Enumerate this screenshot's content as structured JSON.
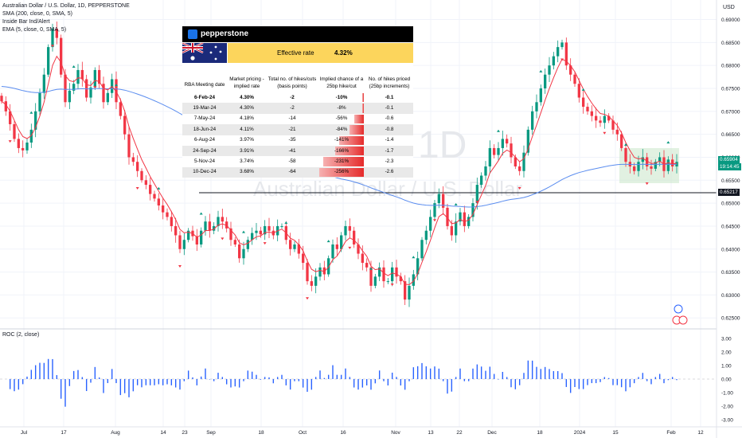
{
  "header": {
    "title": "Australian Dollar / U.S. Dollar, 1D, PEPPERSTONE",
    "sma200": "SMA (200, close, 0, SMA, 5)",
    "inside_bar": "Inside Bar Ind/Alert",
    "ema5": "EMA (5, close, 0, SMA, 5)"
  },
  "currency": "USD",
  "watermark": {
    "big": "1D",
    "name": "Australian Dollar / U.S. Dollar"
  },
  "price_axis": {
    "ticks": [
      "0.69000",
      "0.68500",
      "0.68000",
      "0.67500",
      "0.67000",
      "0.66500",
      "0.66000",
      "0.65500",
      "0.65000",
      "0.64500",
      "0.64000",
      "0.63500",
      "0.63000",
      "0.62500"
    ]
  },
  "price_tags": {
    "current": "0.65904",
    "countdown": "19:14:45",
    "level": "0.65217"
  },
  "time_axis": {
    "labels": [
      "Jul",
      "17",
      "Aug",
      "14",
      "23",
      "Sep",
      "18",
      "Oct",
      "16",
      "Nov",
      "13",
      "22",
      "Dec",
      "18",
      "2024",
      "15",
      "Feb",
      "12"
    ]
  },
  "roc": {
    "label": "ROC (2, close)",
    "ticks": [
      "3.00",
      "2.00",
      "1.00",
      "0.00",
      "-1.00",
      "-2.00",
      "-3.00"
    ]
  },
  "rba_table": {
    "brand": "pepperstone",
    "effective_label": "Effective rate",
    "effective_value": "4.32%",
    "headers": [
      "RBA Meeting date",
      "Market pricing - implied rate",
      "Total no. of hikes/cuts (basis points)",
      "Implied chance of a 25bp hike/cut",
      "No. of hikes priced (25bp increments)"
    ],
    "rows": [
      {
        "date": "6-Feb-24",
        "rate": "4.30%",
        "bps": "-2",
        "chance": "-10%",
        "chance_num": -10,
        "hikes": "-0.1"
      },
      {
        "date": "19-Mar-24",
        "rate": "4.30%",
        "bps": "-2",
        "chance": "-8%",
        "chance_num": -8,
        "hikes": "-0.1"
      },
      {
        "date": "7-May-24",
        "rate": "4.18%",
        "bps": "-14",
        "chance": "-56%",
        "chance_num": -56,
        "hikes": "-0.6"
      },
      {
        "date": "18-Jun-24",
        "rate": "4.11%",
        "bps": "-21",
        "chance": "-84%",
        "chance_num": -84,
        "hikes": "-0.8"
      },
      {
        "date": "6-Aug-24",
        "rate": "3.97%",
        "bps": "-35",
        "chance": "-141%",
        "chance_num": -141,
        "hikes": "-1.4"
      },
      {
        "date": "24-Sep-24",
        "rate": "3.91%",
        "bps": "-41",
        "chance": "-166%",
        "chance_num": -166,
        "hikes": "-1.7"
      },
      {
        "date": "5-Nov-24",
        "rate": "3.74%",
        "bps": "-58",
        "chance": "-231%",
        "chance_num": -231,
        "hikes": "-2.3"
      },
      {
        "date": "10-Dec-24",
        "rate": "3.68%",
        "bps": "-64",
        "chance": "-256%",
        "chance_num": -256,
        "hikes": "-2.6"
      }
    ]
  },
  "colors": {
    "up": "#089981",
    "down": "#f23645",
    "sma": "#5b8def",
    "ema": "#f23645",
    "roc": "#2962ff",
    "box": "#c8e6c9"
  },
  "chart_data": {
    "type": "candlestick",
    "symbol": "AUDUSD",
    "timeframe": "1D",
    "ylim": [
      0.624,
      0.692
    ],
    "close": [
      0.6722,
      0.67,
      0.6672,
      0.664,
      0.662,
      0.6615,
      0.6632,
      0.666,
      0.67,
      0.674,
      0.678,
      0.684,
      0.688,
      0.686,
      0.678,
      0.672,
      0.6745,
      0.676,
      0.679,
      0.677,
      0.673,
      0.6752,
      0.679,
      0.676,
      0.672,
      0.674,
      0.677,
      0.672,
      0.669,
      0.665,
      0.66,
      0.659,
      0.657,
      0.655,
      0.654,
      0.652,
      0.651,
      0.6495,
      0.648,
      0.647,
      0.645,
      0.643,
      0.64,
      0.642,
      0.644,
      0.6428,
      0.641,
      0.644,
      0.646,
      0.644,
      0.645,
      0.647,
      0.646,
      0.6445,
      0.642,
      0.641,
      0.638,
      0.64,
      0.642,
      0.6435,
      0.644,
      0.6432,
      0.645,
      0.644,
      0.643,
      0.645,
      0.645,
      0.642,
      0.64,
      0.641,
      0.639,
      0.637,
      0.633,
      0.632,
      0.634,
      0.636,
      0.6345,
      0.638,
      0.641,
      0.64,
      0.643,
      0.645,
      0.644,
      0.641,
      0.639,
      0.637,
      0.636,
      0.632,
      0.634,
      0.636,
      0.633,
      0.633,
      0.636,
      0.634,
      0.633,
      0.629,
      0.632,
      0.6345,
      0.638,
      0.642,
      0.644,
      0.647,
      0.65,
      0.652,
      0.649,
      0.645,
      0.643,
      0.646,
      0.648,
      0.645,
      0.647,
      0.65,
      0.654,
      0.656,
      0.658,
      0.662,
      0.6605,
      0.662,
      0.664,
      0.663,
      0.66,
      0.658,
      0.657,
      0.661,
      0.666,
      0.67,
      0.672,
      0.675,
      0.678,
      0.68,
      0.682,
      0.684,
      0.685,
      0.68,
      0.678,
      0.676,
      0.673,
      0.671,
      0.67,
      0.669,
      0.668,
      0.6675,
      0.669,
      0.668,
      0.666,
      0.665,
      0.662,
      0.659,
      0.658,
      0.657,
      0.659,
      0.66,
      0.658,
      0.6575,
      0.659,
      0.66,
      0.657,
      0.6595,
      0.658,
      0.659
    ]
  }
}
